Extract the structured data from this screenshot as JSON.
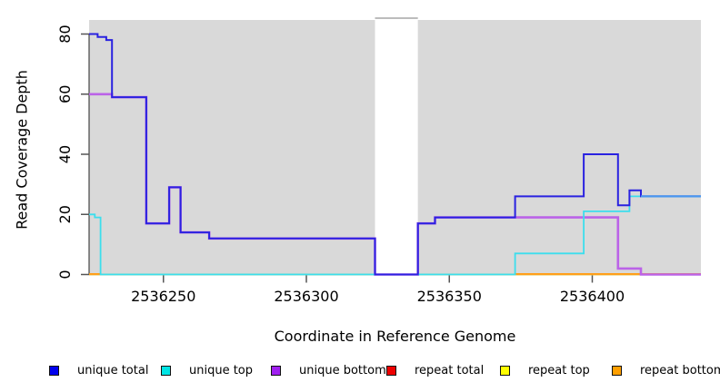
{
  "chart_data": {
    "type": "line",
    "subtype": "step-coverage-plot",
    "title": "",
    "xlabel": "Coordinate in Reference Genome",
    "ylabel": "Read Coverage Depth",
    "xlim": [
      2536224,
      2536438
    ],
    "ylim": [
      0,
      85
    ],
    "x_ticks": [
      2536250,
      2536300,
      2536350,
      2536400
    ],
    "y_ticks": [
      0,
      20,
      40,
      60,
      80
    ],
    "grid": false,
    "legend_position": "bottom",
    "plot_bg_color": "#d9d9d9",
    "page_bg_color": "#ffffff",
    "gap_region": {
      "x_start": 2536324,
      "x_end": 2536339,
      "fill": "#ffffff",
      "top_border_color": "#a6a6a6"
    },
    "baseline_artifact": {
      "color": "#9ccf94",
      "value": 0,
      "from": 2536224,
      "to": 2536438
    },
    "right_overlap": {
      "start": 2536417,
      "end": 2536438,
      "value": 26,
      "color": "#4a97ef"
    },
    "series": [
      {
        "name": "repeat total",
        "color": "#ee0000",
        "line_color": "#ee0000",
        "width": 1.6,
        "points": [
          [
            2536224,
            0
          ],
          [
            2536438,
            0
          ]
        ]
      },
      {
        "name": "repeat top",
        "color": "#ffff00",
        "line_color": "#ffff00",
        "width": 1.6,
        "points": [
          [
            2536224,
            0
          ],
          [
            2536438,
            0
          ]
        ]
      },
      {
        "name": "repeat bottom",
        "color": "#ff9f00",
        "line_color": "#ff9f1a",
        "width": 2,
        "points": [
          [
            2536224,
            0
          ],
          [
            2536438,
            0
          ]
        ],
        "visible_segments": [
          [
            2536224,
            2536228
          ],
          [
            2536373,
            2536438
          ]
        ]
      },
      {
        "name": "unique bottom",
        "color": "#a020f0",
        "line_color": "#bb63e8",
        "width": 2.6,
        "points": [
          [
            2536224,
            60
          ],
          [
            2536232,
            59
          ],
          [
            2536244,
            17
          ],
          [
            2536252,
            29
          ],
          [
            2536256,
            14
          ],
          [
            2536266,
            12
          ],
          [
            2536324,
            0
          ],
          [
            2536339,
            17
          ],
          [
            2536345,
            19
          ],
          [
            2536409,
            2
          ],
          [
            2536417,
            0
          ],
          [
            2536438,
            0
          ]
        ]
      },
      {
        "name": "unique top",
        "color": "#00e5e5",
        "line_color": "#3cdeed",
        "width": 1.8,
        "points": [
          [
            2536224,
            20
          ],
          [
            2536226,
            19
          ],
          [
            2536228,
            0
          ],
          [
            2536373,
            7
          ],
          [
            2536397,
            21
          ],
          [
            2536413,
            26
          ],
          [
            2536438,
            26
          ]
        ],
        "hidden_zero_run": [
          2536228,
          2536373
        ]
      },
      {
        "name": "unique total",
        "color": "#0000ee",
        "line_color": "#2a22e0",
        "width": 2,
        "points": [
          [
            2536224,
            80
          ],
          [
            2536227,
            79
          ],
          [
            2536230,
            78
          ],
          [
            2536232,
            59
          ],
          [
            2536244,
            17
          ],
          [
            2536252,
            29
          ],
          [
            2536256,
            14
          ],
          [
            2536266,
            12
          ],
          [
            2536324,
            0
          ],
          [
            2536339,
            17
          ],
          [
            2536345,
            19
          ],
          [
            2536373,
            26
          ],
          [
            2536397,
            40
          ],
          [
            2536409,
            23
          ],
          [
            2536413,
            28
          ],
          [
            2536417,
            26
          ],
          [
            2536438,
            26
          ]
        ]
      }
    ],
    "legend": [
      {
        "label": "unique total",
        "color": "#0000ee"
      },
      {
        "label": "unique top",
        "color": "#00e5e5"
      },
      {
        "label": "unique bottom",
        "color": "#a020f0"
      },
      {
        "label": "repeat total",
        "color": "#ee0000"
      },
      {
        "label": "repeat top",
        "color": "#ffff00"
      },
      {
        "label": "repeat bottom",
        "color": "#ff9f00"
      }
    ]
  },
  "axis": {
    "tick_color": "#555555",
    "axis_line_color": "#444444"
  }
}
